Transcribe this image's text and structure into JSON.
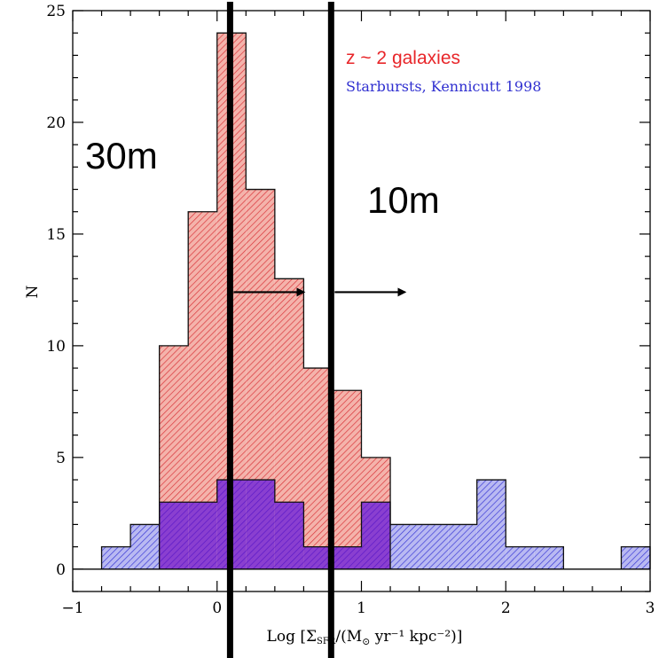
{
  "chart_data": {
    "type": "bar",
    "histogram": true,
    "title": "",
    "xlabel": "Log [ΣSFR/(M⊙ yr⁻¹ kpc⁻²)]",
    "xlabel_parts": {
      "prefix": "Log [Σ",
      "sub": "SFR",
      "middle": "/(M",
      "sun": "⊙",
      "suffix": " yr⁻¹ kpc⁻²)]"
    },
    "ylabel": "N",
    "xlim": [
      -1,
      3
    ],
    "ylim": [
      -1,
      25
    ],
    "xticks": [
      -1,
      0,
      1,
      2,
      3
    ],
    "xtick_labels": [
      "−1",
      "0",
      "1",
      "2",
      "3"
    ],
    "yticks": [
      0,
      5,
      10,
      15,
      20,
      25
    ],
    "ytick_labels": [
      "0",
      "5",
      "10",
      "15",
      "20",
      "25"
    ],
    "series": [
      {
        "name": "z ~ 2 galaxies",
        "color": "#e8262a",
        "fill": "#f0a8a0",
        "bin_edges": [
          -0.4,
          -0.2,
          0.0,
          0.2,
          0.4,
          0.6,
          0.8,
          1.0,
          1.2
        ],
        "counts": [
          10,
          16,
          24,
          17,
          13,
          9,
          8,
          5
        ]
      },
      {
        "name": "Starbursts, Kennicutt 1998",
        "color": "#2f2fd0",
        "fill": "#a8a8ee",
        "bin_edges": [
          -0.8,
          -0.6,
          -0.4,
          -0.2,
          0.0,
          0.2,
          0.4,
          0.6,
          0.8,
          1.0,
          1.2,
          1.4,
          1.6,
          1.8,
          2.0,
          2.2,
          2.4,
          2.6,
          2.8,
          3.0
        ],
        "counts": [
          1,
          2,
          3,
          3,
          4,
          4,
          3,
          1,
          1,
          3,
          2,
          2,
          2,
          4,
          1,
          1,
          0,
          0,
          1
        ]
      }
    ],
    "vertical_lines": [
      {
        "x": 0.09,
        "label": "30m",
        "arrow_to": 0.6,
        "arrow_y": 12.4
      },
      {
        "x": 0.79,
        "label": "10m",
        "arrow_to": 1.3,
        "arrow_y": 12.4
      }
    ],
    "grid": false,
    "legend": "top-right"
  }
}
